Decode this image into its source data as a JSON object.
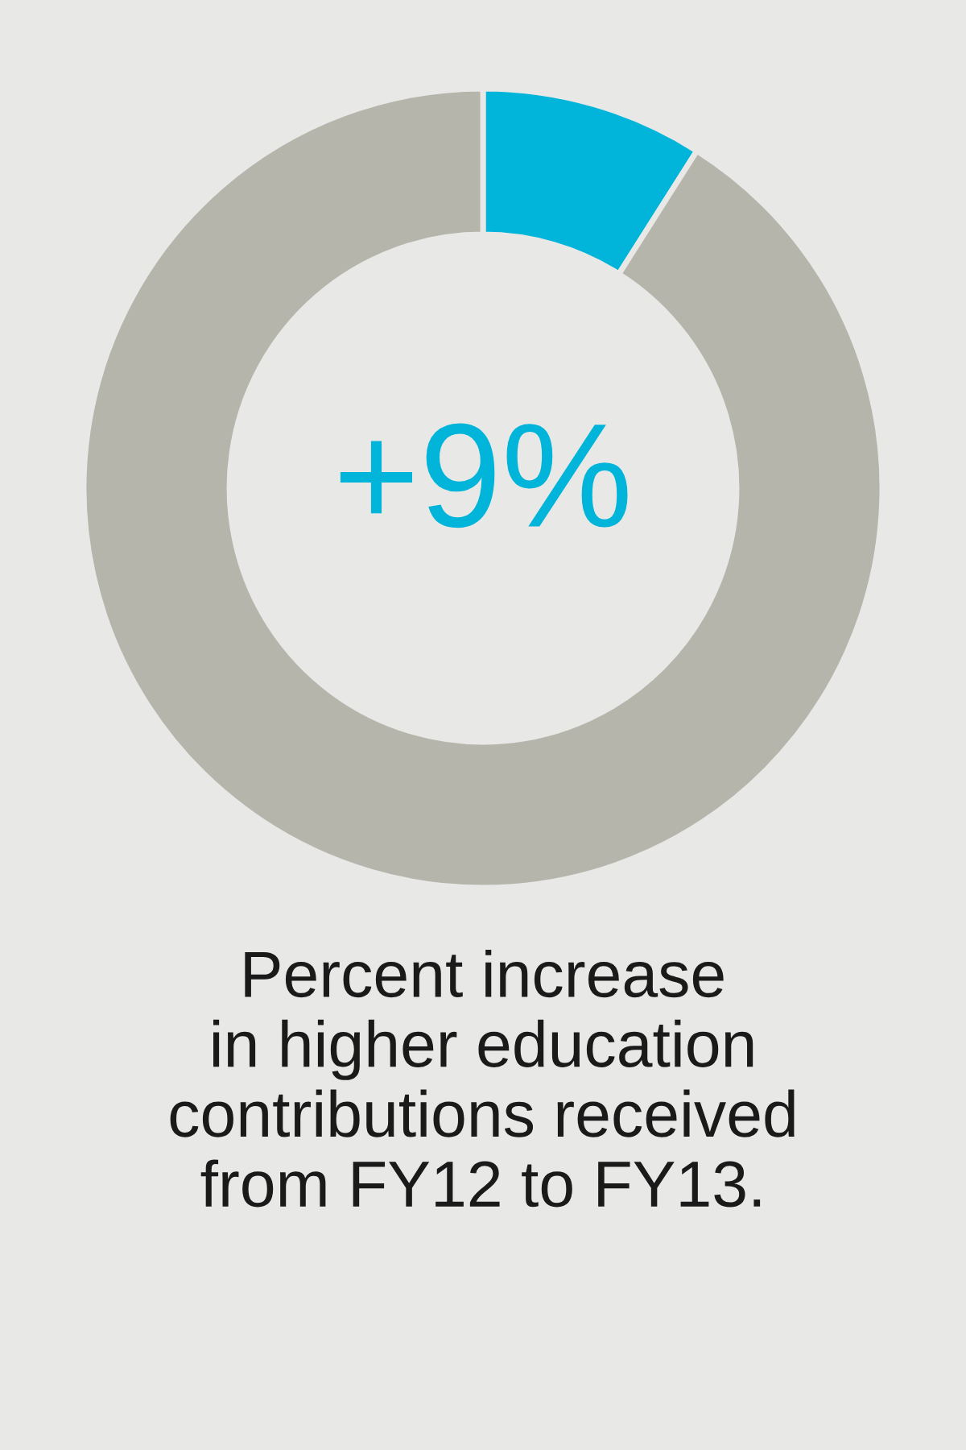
{
  "chart_data": {
    "type": "donut",
    "title": "Percent increase\nin higher education\ncontributions received\nfrom FY12 to FY13.",
    "categories": [
      null,
      null
    ],
    "values": [
      9,
      91
    ],
    "colors": [
      "#00b4da",
      "#b5b5ab"
    ],
    "annotations": [
      "+9%"
    ],
    "legend": false
  }
}
